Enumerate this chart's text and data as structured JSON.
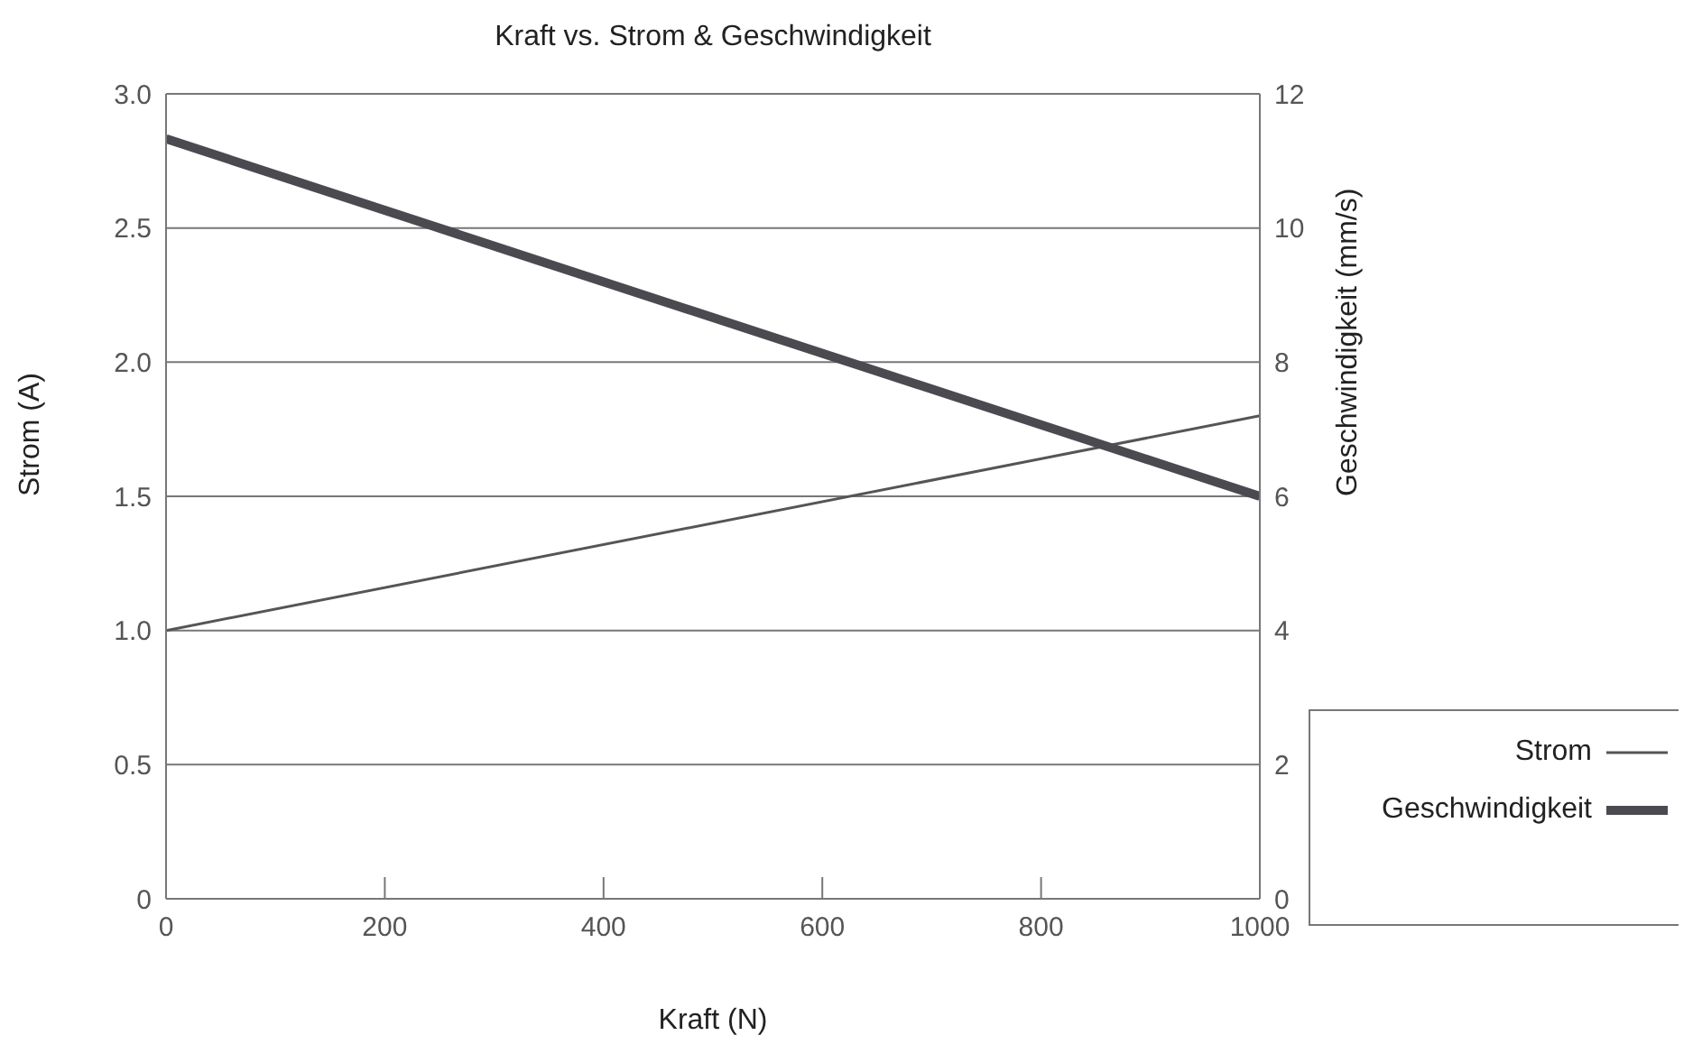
{
  "chart_data": {
    "type": "line",
    "title": "Kraft vs. Strom & Geschwindigkeit",
    "xlabel": "Kraft (N)",
    "ylabel": "Strom (A)",
    "y2label": "Geschwindigkeit (mm/s)",
    "x": [
      0,
      1000
    ],
    "series": [
      {
        "name": "Strom",
        "color": "#555555",
        "values": [
          1.0,
          1.8
        ]
      },
      {
        "name": "Geschwindigkeit",
        "color": "#4a4a50",
        "values": [
          11.33,
          6.0
        ],
        "axis": "y2"
      }
    ],
    "xlim": [
      0,
      1000
    ],
    "xticks": [
      0,
      200,
      400,
      600,
      800,
      1000
    ],
    "ylim": [
      0,
      3.0
    ],
    "yticks": [
      {
        "value": 0,
        "label": "0"
      },
      {
        "value": 0.5,
        "label": "0.5"
      },
      {
        "value": 1.0,
        "label": "1.0"
      },
      {
        "value": 1.5,
        "label": "1.5"
      },
      {
        "value": 2.0,
        "label": "2.0"
      },
      {
        "value": 2.5,
        "label": "2.5"
      },
      {
        "value": 3.0,
        "label": "3.0"
      }
    ],
    "y2lim": [
      0,
      12
    ],
    "y2ticks": [
      0,
      2,
      4,
      6,
      8,
      10,
      12
    ],
    "grid": "y",
    "legend": "bottom right",
    "marker": "none",
    "line_style": "solid"
  }
}
